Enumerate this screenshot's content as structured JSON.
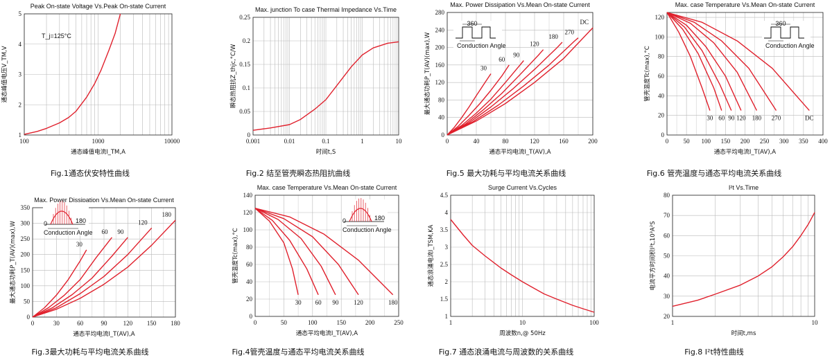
{
  "chart_data": [
    {
      "id": "fig1",
      "type": "line",
      "title": "Peak On-state Voltage Vs.Peak On-state Current",
      "caption": "Fig.1通态伏安特性曲线",
      "xlabel": "通态峰值电流I_TM,A",
      "ylabel": "通态峰值电压V_TM,V",
      "xscale": "log",
      "xlim": [
        100,
        10000
      ],
      "ylim": [
        1,
        5
      ],
      "xticks": [
        100,
        1000,
        10000
      ],
      "yticks": [
        1,
        2,
        3,
        4,
        5
      ],
      "annotations": [
        "T_j=125°C"
      ],
      "series": [
        {
          "name": "",
          "x": [
            100,
            150,
            200,
            300,
            400,
            500,
            700,
            900,
            1100,
            1400,
            1700,
            2000
          ],
          "y": [
            1.02,
            1.12,
            1.22,
            1.4,
            1.58,
            1.78,
            2.25,
            2.7,
            3.15,
            3.8,
            4.35,
            5.0
          ]
        }
      ]
    },
    {
      "id": "fig2",
      "type": "line",
      "title": "Max. junction To case Thermai Impedance Vs.Time",
      "caption": "Fig.2 结至管壳瞬态热阻抗曲线",
      "xlabel": "时间t,S",
      "ylabel": "瞬态热阻抗Z_thjc,°C/W",
      "xscale": "log",
      "xlim": [
        0.001,
        10
      ],
      "ylim": [
        0,
        0.25
      ],
      "xticks": [
        0.001,
        0.01,
        0.1,
        1,
        10
      ],
      "xticklabels": [
        "0.001",
        "0.01",
        "0.1",
        "1",
        "10"
      ],
      "yticks": [
        0,
        0.05,
        0.1,
        0.15,
        0.2,
        0.25
      ],
      "series": [
        {
          "name": "",
          "x": [
            0.001,
            0.003,
            0.01,
            0.02,
            0.05,
            0.1,
            0.2,
            0.5,
            1,
            2,
            5,
            10
          ],
          "y": [
            0.01,
            0.015,
            0.022,
            0.033,
            0.055,
            0.075,
            0.105,
            0.145,
            0.17,
            0.185,
            0.195,
            0.198
          ]
        }
      ]
    },
    {
      "id": "fig5",
      "type": "line",
      "title": "Max. Power Dissipation Vs.Mean On-state Current",
      "caption": "Fig.5 最大功耗与平均电流关系曲线",
      "xlabel": "通态平均电流I_T(AV),A",
      "ylabel": "最大通态功耗P_T(AV)(max),W",
      "xlim": [
        0,
        200
      ],
      "ylim": [
        0,
        280
      ],
      "xticks": [
        0,
        40,
        80,
        120,
        160,
        200
      ],
      "yticks": [
        0,
        40,
        80,
        120,
        160,
        200,
        240,
        280
      ],
      "annotations": [
        "360",
        "Conduction Angle"
      ],
      "series": [
        {
          "name": "30",
          "x": [
            0,
            10,
            20,
            30,
            40,
            50,
            60
          ],
          "y": [
            0,
            18,
            40,
            64,
            90,
            115,
            140
          ]
        },
        {
          "name": "60",
          "x": [
            0,
            15,
            30,
            45,
            60,
            75,
            85
          ],
          "y": [
            0,
            20,
            45,
            72,
            102,
            135,
            160
          ]
        },
        {
          "name": "90",
          "x": [
            0,
            20,
            40,
            60,
            80,
            100,
            105
          ],
          "y": [
            0,
            22,
            50,
            82,
            120,
            160,
            170
          ]
        },
        {
          "name": "120",
          "x": [
            0,
            25,
            50,
            75,
            100,
            125,
            132
          ],
          "y": [
            0,
            25,
            58,
            95,
            138,
            182,
            195
          ]
        },
        {
          "name": "180",
          "x": [
            0,
            30,
            60,
            90,
            120,
            150,
            158
          ],
          "y": [
            0,
            28,
            64,
            105,
            150,
            198,
            212
          ]
        },
        {
          "name": "270",
          "x": [
            0,
            35,
            70,
            105,
            140,
            175,
            180
          ],
          "y": [
            0,
            30,
            68,
            112,
            160,
            215,
            222
          ]
        },
        {
          "name": "DC",
          "x": [
            0,
            40,
            80,
            120,
            160,
            200
          ],
          "y": [
            0,
            32,
            72,
            120,
            175,
            245
          ]
        }
      ]
    },
    {
      "id": "fig6",
      "type": "line",
      "title": "Max. case Temperature Vs.Mean On-state Current",
      "caption": "Fig.6 管壳温度与通态平均电流关系曲线",
      "xlabel": "通态平均电流I_T(AV),A",
      "ylabel": "管壳温度Tc(max),°C",
      "xlim": [
        0,
        400
      ],
      "ylim": [
        0,
        125
      ],
      "xticks": [
        0,
        50,
        100,
        150,
        200,
        250,
        300,
        350,
        400
      ],
      "yticks": [
        0,
        20,
        40,
        60,
        80,
        100,
        120
      ],
      "annotations": [
        "360",
        "Conduction Angle"
      ],
      "series": [
        {
          "name": "30",
          "x": [
            0,
            30,
            60,
            90,
            110
          ],
          "y": [
            125,
            105,
            80,
            48,
            25
          ]
        },
        {
          "name": "60",
          "x": [
            0,
            40,
            80,
            120,
            140
          ],
          "y": [
            125,
            108,
            83,
            48,
            25
          ]
        },
        {
          "name": "90",
          "x": [
            0,
            45,
            90,
            135,
            165
          ],
          "y": [
            125,
            110,
            86,
            52,
            25
          ]
        },
        {
          "name": "120",
          "x": [
            0,
            50,
            100,
            150,
            190
          ],
          "y": [
            125,
            112,
            90,
            60,
            25
          ]
        },
        {
          "name": "180",
          "x": [
            0,
            60,
            120,
            180,
            230
          ],
          "y": [
            125,
            114,
            94,
            64,
            25
          ]
        },
        {
          "name": "270",
          "x": [
            0,
            70,
            140,
            210,
            280
          ],
          "y": [
            125,
            115,
            96,
            68,
            25
          ]
        },
        {
          "name": "DC",
          "x": [
            0,
            90,
            180,
            270,
            365
          ],
          "y": [
            125,
            115,
            96,
            68,
            25
          ]
        }
      ]
    },
    {
      "id": "fig3",
      "type": "line",
      "title": "Max. Power Dissipation Vs.Mean On-state Current",
      "caption": "Fig.3最大功耗与平均电流关系曲线",
      "xlabel": "通态平均电流I_T(AV),A",
      "ylabel": "最大通态功耗P_T(AV)(max),W",
      "xlim": [
        0,
        180
      ],
      "ylim": [
        0,
        350
      ],
      "xticks": [
        0,
        30,
        60,
        90,
        120,
        150,
        180
      ],
      "yticks": [
        0,
        50,
        100,
        150,
        200,
        250,
        300,
        350
      ],
      "annotations": [
        "0",
        "180",
        "Conduction Angle"
      ],
      "series": [
        {
          "name": "30",
          "x": [
            0,
            15,
            30,
            45,
            60,
            68
          ],
          "y": [
            0,
            30,
            70,
            120,
            180,
            215
          ]
        },
        {
          "name": "60",
          "x": [
            0,
            20,
            40,
            60,
            80,
            100
          ],
          "y": [
            0,
            30,
            70,
            120,
            190,
            255
          ]
        },
        {
          "name": "90",
          "x": [
            0,
            25,
            50,
            75,
            100,
            120
          ],
          "y": [
            0,
            30,
            72,
            125,
            195,
            255
          ]
        },
        {
          "name": "120",
          "x": [
            0,
            30,
            60,
            90,
            120,
            150
          ],
          "y": [
            0,
            30,
            75,
            130,
            200,
            285
          ]
        },
        {
          "name": "180",
          "x": [
            0,
            30,
            60,
            90,
            120,
            150,
            180
          ],
          "y": [
            0,
            25,
            60,
            105,
            160,
            230,
            310
          ]
        }
      ]
    },
    {
      "id": "fig4",
      "type": "line",
      "title": "Max. case Temperature Vs.Mean On-state Current",
      "caption": "Fig.4管壳温度与通态平均电流关系曲线",
      "xlabel": "通态平均电流I_T(AV),A",
      "ylabel": "管壳温度Tc(max),°C",
      "xlim": [
        0,
        250
      ],
      "ylim": [
        0,
        140
      ],
      "xticks": [
        0,
        50,
        100,
        150,
        200,
        250
      ],
      "yticks": [
        0,
        20,
        40,
        60,
        80,
        100,
        120,
        140
      ],
      "annotations": [
        "0",
        "180",
        "Conduction Angle"
      ],
      "series": [
        {
          "name": "30",
          "x": [
            0,
            25,
            50,
            65,
            75
          ],
          "y": [
            125,
            110,
            85,
            55,
            25
          ]
        },
        {
          "name": "60",
          "x": [
            0,
            30,
            60,
            90,
            110
          ],
          "y": [
            125,
            111,
            88,
            55,
            25
          ]
        },
        {
          "name": "90",
          "x": [
            0,
            40,
            80,
            115,
            140
          ],
          "y": [
            125,
            112,
            90,
            58,
            25
          ]
        },
        {
          "name": "120",
          "x": [
            0,
            50,
            100,
            145,
            180
          ],
          "y": [
            125,
            113,
            92,
            60,
            25
          ]
        },
        {
          "name": "180",
          "x": [
            0,
            60,
            120,
            180,
            240
          ],
          "y": [
            125,
            115,
            95,
            65,
            25
          ]
        }
      ]
    },
    {
      "id": "fig7",
      "type": "line",
      "title": "Surge Current Vs.Cycles",
      "caption": "Fig.7 通态浪涌电流与周波数的关系曲线",
      "xlabel": "周波数n,@ 50Hz",
      "ylabel": "通态浪涌电流I_TSM,KA",
      "xscale": "log",
      "xlim": [
        1,
        100
      ],
      "ylim": [
        1,
        4.5
      ],
      "xticks": [
        1,
        10,
        100
      ],
      "yticks": [
        1,
        1.5,
        2,
        2.5,
        3,
        3.5,
        4,
        4.5
      ],
      "series": [
        {
          "name": "",
          "x": [
            1,
            1.5,
            2,
            3,
            5,
            7,
            10,
            20,
            30,
            50,
            70,
            100
          ],
          "y": [
            3.8,
            3.35,
            3.05,
            2.75,
            2.4,
            2.2,
            2.0,
            1.65,
            1.5,
            1.32,
            1.22,
            1.12
          ]
        }
      ]
    },
    {
      "id": "fig8",
      "type": "line",
      "title": "I²t Vs.Time",
      "caption": "Fig.8 I²t特性曲线",
      "xlabel": "时间t,ms",
      "ylabel": "电流平方时间积I²t,10³A²S",
      "xscale": "log",
      "xlim": [
        1,
        10
      ],
      "ylim": [
        20,
        80
      ],
      "xticks": [
        1,
        10
      ],
      "yticks": [
        20,
        30,
        40,
        50,
        60,
        70,
        80
      ],
      "series": [
        {
          "name": "",
          "x": [
            1,
            1.5,
            2,
            3,
            4,
            5,
            6,
            7,
            8,
            9,
            10
          ],
          "y": [
            25,
            28,
            31,
            35.5,
            40,
            44.5,
            49.5,
            54.5,
            60,
            65.5,
            71.5
          ]
        }
      ]
    }
  ]
}
